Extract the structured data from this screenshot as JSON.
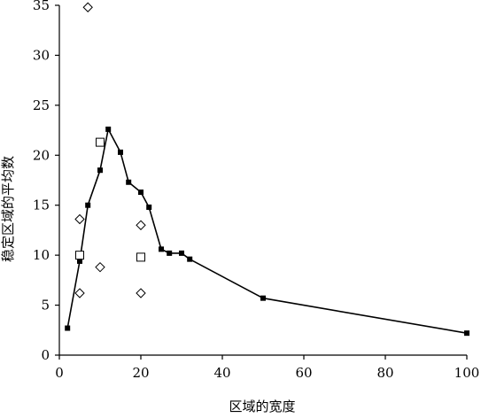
{
  "chart_data": {
    "type": "scatter",
    "title": "",
    "xlabel": "区域的宽度",
    "ylabel": "稳定区域的平均数",
    "xlim": [
      0,
      100
    ],
    "ylim": [
      0,
      35
    ],
    "xticks": [
      "0",
      "20",
      "40",
      "60",
      "80",
      "100"
    ],
    "yticks": [
      "0",
      "5",
      "10",
      "15",
      "20",
      "25",
      "30",
      "35"
    ],
    "grid": false,
    "legend": "none",
    "series": [
      {
        "marker": "filled-square",
        "connected": true,
        "color": "#000000",
        "points": [
          [
            2,
            2.7
          ],
          [
            5,
            9.4
          ],
          [
            7,
            15.0
          ],
          [
            10,
            18.5
          ],
          [
            12,
            22.6
          ],
          [
            15,
            20.3
          ],
          [
            17,
            17.3
          ],
          [
            20,
            16.3
          ],
          [
            22,
            14.8
          ],
          [
            25,
            10.6
          ],
          [
            27,
            10.2
          ],
          [
            30,
            10.2
          ],
          [
            32,
            9.6
          ],
          [
            50,
            5.7
          ],
          [
            100,
            2.2
          ]
        ]
      },
      {
        "marker": "open-square",
        "connected": false,
        "color": "#000000",
        "points": [
          [
            5,
            10.0
          ],
          [
            10,
            21.3
          ],
          [
            20,
            9.8
          ]
        ]
      },
      {
        "marker": "open-diamond",
        "connected": false,
        "color": "#000000",
        "points": [
          [
            5,
            13.6
          ],
          [
            5,
            6.2
          ],
          [
            7,
            34.8
          ],
          [
            10,
            8.8
          ],
          [
            20,
            13.0
          ],
          [
            20,
            6.2
          ]
        ]
      }
    ]
  }
}
